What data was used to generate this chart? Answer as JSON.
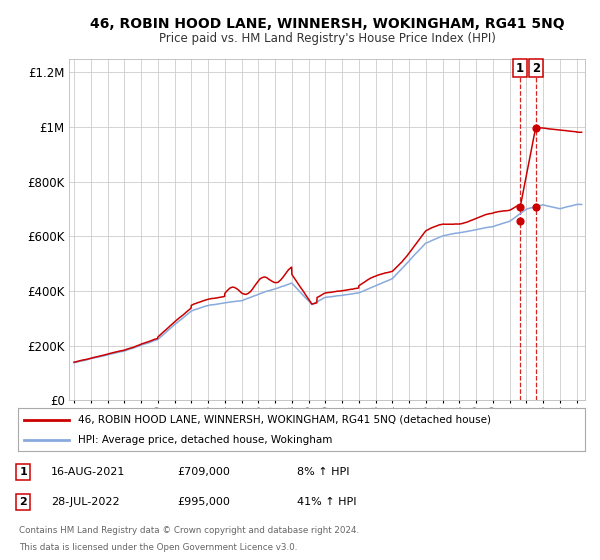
{
  "title": "46, ROBIN HOOD LANE, WINNERSH, WOKINGHAM, RG41 5NQ",
  "subtitle": "Price paid vs. HM Land Registry's House Price Index (HPI)",
  "legend_line1": "46, ROBIN HOOD LANE, WINNERSH, WOKINGHAM, RG41 5NQ (detached house)",
  "legend_line2": "HPI: Average price, detached house, Wokingham",
  "table_row1": [
    "1",
    "16-AUG-2021",
    "£709,000",
    "8% ↑ HPI"
  ],
  "table_row2": [
    "2",
    "28-JUL-2022",
    "£995,000",
    "41% ↑ HPI"
  ],
  "footnote1": "Contains HM Land Registry data © Crown copyright and database right 2024.",
  "footnote2": "This data is licensed under the Open Government Licence v3.0.",
  "price_color": "#cc0000",
  "hpi_color": "#88aadd",
  "vline_color": "#cc0000",
  "background_color": "#ffffff",
  "grid_color": "#cccccc",
  "ylim": [
    0,
    1250000
  ],
  "xlim_start": 1994.7,
  "xlim_end": 2025.5,
  "transaction1_x": 2021.625,
  "transaction1_y": 709000,
  "transaction1_hpi_y": 656000,
  "transaction2_x": 2022.58,
  "transaction2_y": 995000,
  "transaction2_hpi_y": 706000
}
